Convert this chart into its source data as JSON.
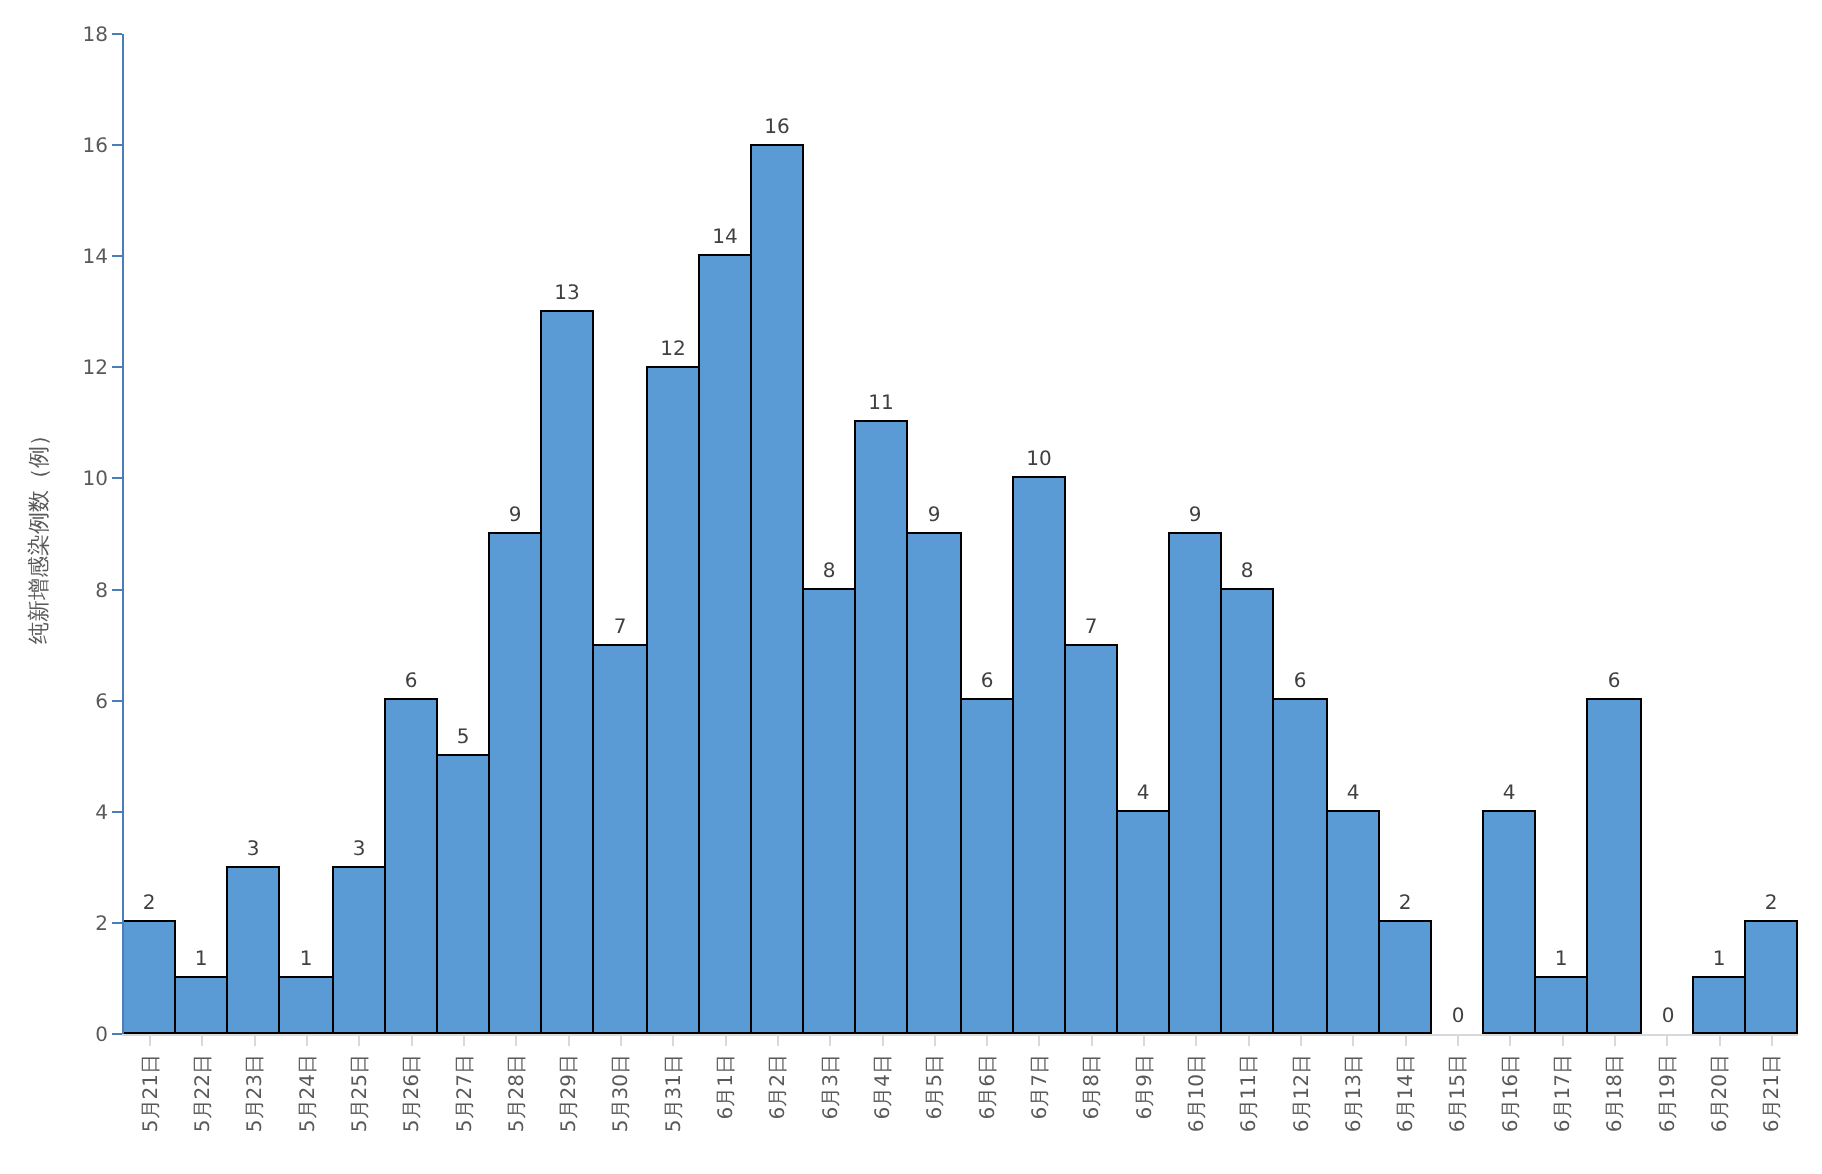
{
  "chart_data": {
    "type": "bar",
    "ylabel": "纯新增感染例数（例）",
    "categories": [
      "5月21日",
      "5月22日",
      "5月23日",
      "5月24日",
      "5月25日",
      "5月26日",
      "5月27日",
      "5月28日",
      "5月29日",
      "5月30日",
      "5月31日",
      "6月1日",
      "6月2日",
      "6月3日",
      "6月4日",
      "6月5日",
      "6月6日",
      "6月7日",
      "6月8日",
      "6月9日",
      "6月10日",
      "6月11日",
      "6月12日",
      "6月13日",
      "6月14日",
      "6月15日",
      "6月16日",
      "6月17日",
      "6月18日",
      "6月19日",
      "6月20日",
      "6月21日"
    ],
    "values": [
      2,
      1,
      3,
      1,
      3,
      6,
      5,
      9,
      13,
      7,
      12,
      14,
      16,
      8,
      11,
      9,
      6,
      10,
      7,
      4,
      9,
      8,
      6,
      4,
      2,
      0,
      4,
      1,
      6,
      0,
      1,
      2
    ],
    "color": "#5b9bd5",
    "ylim": [
      0,
      18
    ],
    "yticks": [
      0,
      2,
      4,
      6,
      8,
      10,
      12,
      14,
      16,
      18
    ],
    "data_labels": true,
    "legend": false
  }
}
